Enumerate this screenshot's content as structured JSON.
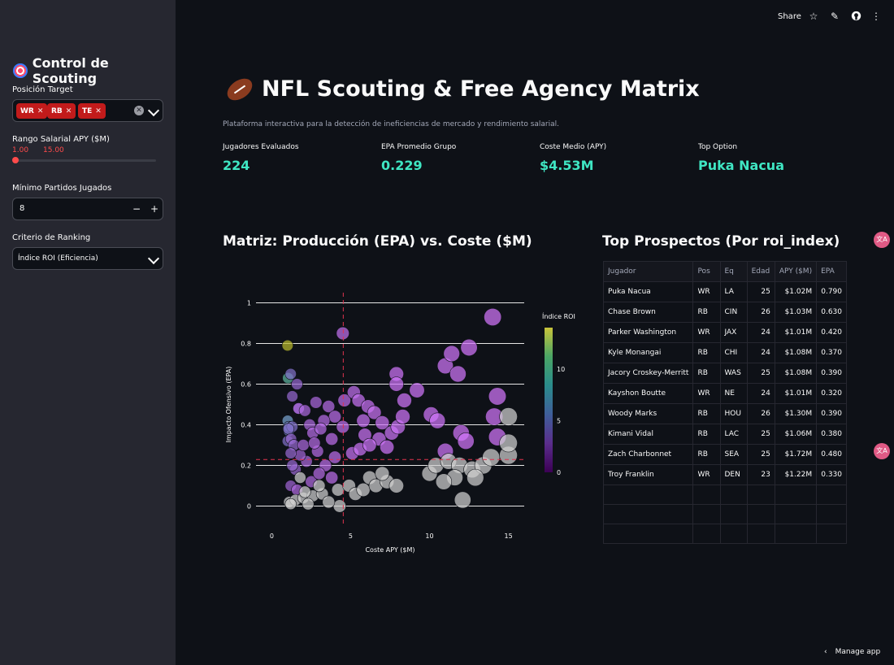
{
  "sidebar": {
    "title": "Control de Scouting",
    "position_label": "Posición Target",
    "positions": [
      "WR",
      "RB",
      "TE"
    ],
    "salary_label": "Rango Salarial APY ($M)",
    "salary_min": "1.00",
    "salary_max": "15.00",
    "min_games_label": "Mínimo Partidos Jugados",
    "min_games_value": "8",
    "ranking_label": "Criterio de Ranking",
    "ranking_value": "Índice ROI (Eficiencia)"
  },
  "toolbar": {
    "share": "Share",
    "manage": "Manage app"
  },
  "header": {
    "title": "NFL Scouting & Free Agency Matrix",
    "subtitle": "Plataforma interactiva para la detección de ineficiencias de mercado y rendimiento salarial."
  },
  "metrics": [
    {
      "label": "Jugadores Evaluados",
      "value": "224"
    },
    {
      "label": "EPA Promedio Grupo",
      "value": "0.229"
    },
    {
      "label": "Coste Medio (APY)",
      "value": "$4.53M"
    },
    {
      "label": "Top Option",
      "value": "Puka Nacua"
    }
  ],
  "chart_section_title": "Matriz: Producción (EPA) vs. Coste ($M)",
  "table_section_title": "Top Prospectos (Por roi_index)",
  "table": {
    "headers": [
      "Jugador",
      "Pos",
      "Eq",
      "Edad",
      "APY ($M)",
      "EPA"
    ],
    "rows": [
      [
        "Puka Nacua",
        "WR",
        "LA",
        "25",
        "$1.02M",
        "0.790"
      ],
      [
        "Chase Brown",
        "RB",
        "CIN",
        "26",
        "$1.03M",
        "0.630"
      ],
      [
        "Parker Washington",
        "WR",
        "JAX",
        "24",
        "$1.01M",
        "0.420"
      ],
      [
        "Kyle Monangai",
        "RB",
        "CHI",
        "24",
        "$1.08M",
        "0.370"
      ],
      [
        "Jacory Croskey-Merritt",
        "RB",
        "WAS",
        "25",
        "$1.08M",
        "0.390"
      ],
      [
        "Kayshon Boutte",
        "WR",
        "NE",
        "24",
        "$1.01M",
        "0.320"
      ],
      [
        "Woody Marks",
        "RB",
        "HOU",
        "26",
        "$1.30M",
        "0.390"
      ],
      [
        "Kimani Vidal",
        "RB",
        "LAC",
        "25",
        "$1.06M",
        "0.380"
      ],
      [
        "Zach Charbonnet",
        "RB",
        "SEA",
        "25",
        "$1.72M",
        "0.480"
      ],
      [
        "Troy Franklin",
        "WR",
        "DEN",
        "23",
        "$1.22M",
        "0.330"
      ]
    ]
  },
  "colors": {
    "accent": "#ff4b4b",
    "metric": "#3fe6c3",
    "tag": "#c21b1b",
    "bg": "#0e1117",
    "sidebar": "#262730"
  },
  "chart_data": {
    "type": "scatter",
    "title": "",
    "xlabel": "Coste APY ($M)",
    "ylabel": "Impacto Ofensivo (EPA)",
    "xlim": [
      -1,
      16
    ],
    "ylim": [
      -0.05,
      1.05
    ],
    "x_ticks": [
      0,
      5,
      10,
      15
    ],
    "y_ticks": [
      0,
      0.2,
      0.4,
      0.6,
      0.8,
      1
    ],
    "ref_lines": {
      "x": 4.53,
      "y": 0.229
    },
    "colorbar": {
      "title": "Índice ROI",
      "ticks": [
        0,
        5,
        10
      ],
      "range": [
        0,
        14
      ]
    },
    "points": [
      [
        1.0,
        0.79,
        14
      ],
      [
        1.03,
        0.63,
        9
      ],
      [
        1.01,
        0.42,
        6
      ],
      [
        1.08,
        0.37,
        5
      ],
      [
        1.08,
        0.39,
        5
      ],
      [
        1.01,
        0.32,
        4
      ],
      [
        1.3,
        0.39,
        4
      ],
      [
        1.06,
        0.38,
        4
      ],
      [
        1.72,
        0.48,
        3
      ],
      [
        1.22,
        0.33,
        3
      ],
      [
        1.2,
        0.65,
        4
      ],
      [
        1.6,
        0.6,
        3
      ],
      [
        1.3,
        0.54,
        3
      ],
      [
        1.7,
        0.48,
        2
      ],
      [
        2.1,
        0.47,
        2
      ],
      [
        2.8,
        0.51,
        2
      ],
      [
        3.6,
        0.49,
        1.5
      ],
      [
        4.6,
        0.52,
        1.2
      ],
      [
        5.2,
        0.56,
        1
      ],
      [
        4.0,
        0.44,
        1.2
      ],
      [
        4.5,
        0.85,
        1
      ],
      [
        3.3,
        0.42,
        1.5
      ],
      [
        2.4,
        0.4,
        2
      ],
      [
        2.6,
        0.36,
        1.5
      ],
      [
        3.1,
        0.38,
        1.5
      ],
      [
        3.8,
        0.33,
        1.2
      ],
      [
        4.5,
        0.39,
        1
      ],
      [
        5.5,
        0.52,
        0.8
      ],
      [
        6.1,
        0.49,
        0.7
      ],
      [
        5.8,
        0.42,
        0.7
      ],
      [
        6.5,
        0.46,
        0.6
      ],
      [
        7.0,
        0.41,
        0.6
      ],
      [
        5.9,
        0.35,
        0.6
      ],
      [
        6.8,
        0.33,
        0.5
      ],
      [
        7.6,
        0.36,
        0.5
      ],
      [
        8.0,
        0.39,
        0.5
      ],
      [
        7.3,
        0.29,
        0.4
      ],
      [
        8.3,
        0.44,
        0.4
      ],
      [
        7.9,
        0.65,
        0.4
      ],
      [
        7.9,
        0.6,
        0.4
      ],
      [
        8.4,
        0.52,
        0.3
      ],
      [
        9.2,
        0.57,
        0.3
      ],
      [
        10.1,
        0.45,
        0.3
      ],
      [
        11.0,
        0.69,
        0.3
      ],
      [
        11.4,
        0.75,
        0.3
      ],
      [
        11.8,
        0.65,
        0.3
      ],
      [
        12.5,
        0.78,
        0.2
      ],
      [
        14.0,
        0.93,
        0.2
      ],
      [
        14.3,
        0.54,
        0.2
      ],
      [
        14.1,
        0.44,
        0.2
      ],
      [
        14.3,
        0.34,
        0.2
      ],
      [
        12.0,
        0.36,
        0.2
      ],
      [
        12.3,
        0.32,
        0.2
      ],
      [
        11.0,
        0.27,
        0.3
      ],
      [
        10.5,
        0.42,
        0.3
      ],
      [
        5.1,
        0.26,
        0.7
      ],
      [
        5.6,
        0.28,
        0.6
      ],
      [
        6.2,
        0.3,
        0.5
      ],
      [
        4.0,
        0.24,
        1.2
      ],
      [
        3.4,
        0.2,
        1.3
      ],
      [
        2.9,
        0.27,
        1.6
      ],
      [
        2.2,
        0.22,
        2
      ],
      [
        1.8,
        0.25,
        2.5
      ],
      [
        1.5,
        0.18,
        2.8
      ],
      [
        1.3,
        0.2,
        3
      ],
      [
        2.5,
        0.12,
        1.8
      ],
      [
        3.0,
        0.16,
        1.6
      ],
      [
        3.8,
        0.14,
        1.3
      ],
      [
        1.2,
        0.1,
        2.5
      ],
      [
        1.6,
        0.08,
        1.8
      ],
      [
        1.4,
        0.3,
        3
      ],
      [
        1.2,
        0.26,
        3
      ],
      [
        2.0,
        0.3,
        2
      ],
      [
        2.7,
        0.31,
        1.6
      ],
      [
        1.1,
        0.02,
        0
      ],
      [
        1.5,
        0.03,
        0
      ],
      [
        2.0,
        0.04,
        0
      ],
      [
        2.6,
        0.05,
        0
      ],
      [
        3.2,
        0.06,
        0
      ],
      [
        4.2,
        0.08,
        0
      ],
      [
        4.9,
        0.1,
        0
      ],
      [
        5.3,
        0.06,
        0
      ],
      [
        5.8,
        0.08,
        0
      ],
      [
        6.2,
        0.14,
        0
      ],
      [
        6.6,
        0.1,
        0
      ],
      [
        7.3,
        0.12,
        0
      ],
      [
        7.9,
        0.1,
        0
      ],
      [
        4.3,
        0.0,
        0
      ],
      [
        1.2,
        0.01,
        0
      ],
      [
        10.0,
        0.16,
        0
      ],
      [
        10.4,
        0.2,
        0
      ],
      [
        11.2,
        0.22,
        0
      ],
      [
        11.9,
        0.2,
        0
      ],
      [
        12.7,
        0.18,
        0
      ],
      [
        13.4,
        0.2,
        0
      ],
      [
        13.9,
        0.24,
        0
      ],
      [
        15.0,
        0.25,
        0
      ],
      [
        15.0,
        0.31,
        0
      ],
      [
        15.0,
        0.44,
        0
      ],
      [
        12.1,
        0.03,
        0
      ],
      [
        11.6,
        0.14,
        0
      ],
      [
        10.9,
        0.12,
        0
      ],
      [
        12.9,
        0.14,
        0
      ],
      [
        3.6,
        0.02,
        0
      ],
      [
        2.3,
        0.01,
        0
      ],
      [
        3.0,
        0.1,
        0
      ],
      [
        1.8,
        0.14,
        0
      ],
      [
        2.1,
        0.07,
        0
      ],
      [
        7.0,
        0.16,
        0
      ]
    ]
  }
}
